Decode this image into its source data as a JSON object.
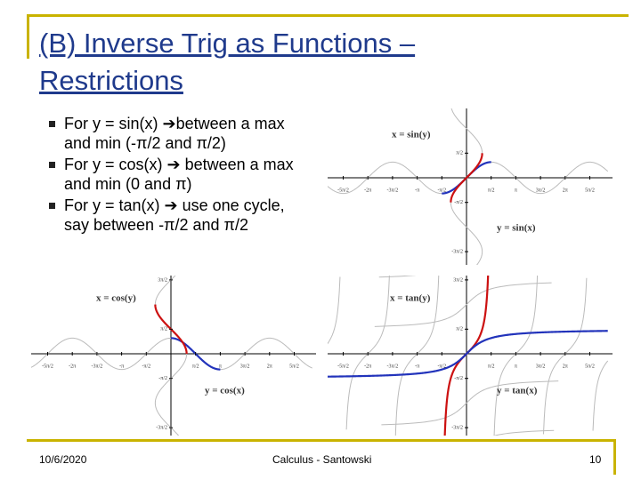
{
  "title": "(B) Inverse Trig as Functions – Restrictions",
  "bullets": [
    "For y = sin(x) ➔between a max and min (-π/2 and π/2)",
    "For y = cos(x) ➔ between a max and min (0 and π)",
    "For y = tan(x) ➔ use one cycle, say between -π/2 and π/2"
  ],
  "graphs": [
    {
      "kind": "sin",
      "top_label": "x = sin(y)",
      "bottom_label": "y = sin(x)",
      "x_ticks": [
        "-5π/2",
        "-2π",
        "-3π/2",
        "-π",
        "-π/2",
        "π/2",
        "π",
        "3π/2",
        "2π",
        "5π/2"
      ],
      "y_ticks": [
        "3π/2",
        "π/2",
        "-π/2",
        "-3π/2"
      ]
    },
    {
      "kind": "cos",
      "top_label": "x = cos(y)",
      "bottom_label": "y = cos(x)",
      "x_ticks": [
        "-5π/2",
        "-2π",
        "-3π/2",
        "-π",
        "-π/2",
        "π/2",
        "π",
        "3π/2",
        "2π",
        "5π/2"
      ],
      "y_ticks": [
        "3π/2",
        "π/2",
        "-π/2",
        "-3π/2"
      ]
    },
    {
      "kind": "tan",
      "top_label": "x = tan(y)",
      "bottom_label": "y = tan(x)",
      "x_ticks": [
        "-5π/2",
        "-2π",
        "-3π/2",
        "-π",
        "-π/2",
        "π/2",
        "π",
        "3π/2",
        "2π",
        "5π/2"
      ],
      "y_ticks": [
        "3π/2",
        "π/2",
        "-π/2",
        "-3π/2"
      ]
    }
  ],
  "footer": {
    "date": "10/6/2020",
    "center": "Calculus - Santowski",
    "page": "10"
  }
}
